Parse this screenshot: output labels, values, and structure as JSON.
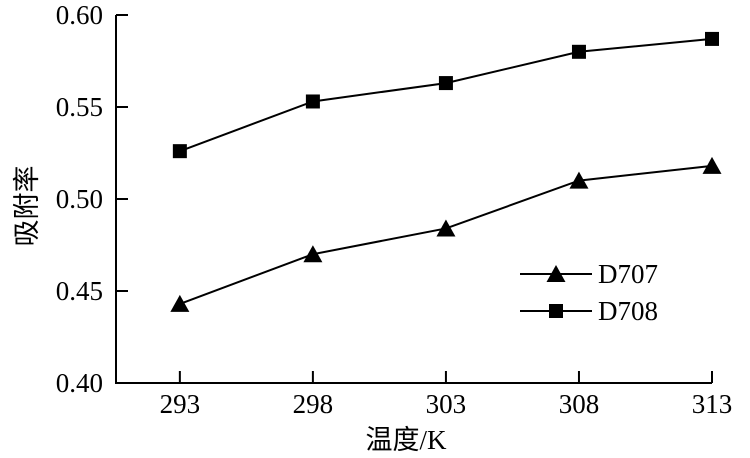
{
  "figure": {
    "background": "#ffffff",
    "axis_color": "#000000",
    "line_color": "#000000",
    "marker_color": "#000000"
  },
  "chart_data": {
    "type": "line",
    "title": "",
    "xlabel": "温度/K",
    "ylabel": "吸附率",
    "x": [
      293,
      298,
      303,
      308,
      313
    ],
    "series": [
      {
        "name": "D707",
        "marker": "triangle",
        "color": "#000000",
        "values": [
          0.443,
          0.47,
          0.484,
          0.51,
          0.518
        ]
      },
      {
        "name": "D708",
        "marker": "square",
        "color": "#000000",
        "values": [
          0.526,
          0.553,
          0.563,
          0.58,
          0.587
        ]
      }
    ],
    "xlim": [
      290.6,
      313
    ],
    "ylim": [
      0.4,
      0.6
    ],
    "xticks": [
      293,
      298,
      303,
      308,
      313
    ],
    "yticks": [
      0.4,
      0.45,
      0.5,
      0.55,
      0.6
    ],
    "ytick_decimals": 2,
    "grid": false,
    "legend_position": "lower right"
  }
}
